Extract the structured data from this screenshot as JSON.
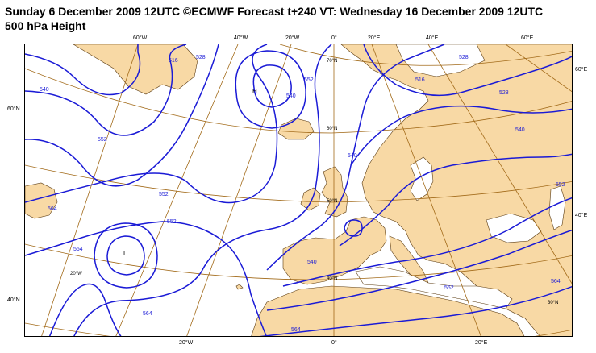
{
  "title": {
    "line1": "Sunday 6 December 2009 12UTC ©ECMWF Forecast t+240 VT: Wednesday 16 December 2009 12UTC",
    "line2": "500 hPa Height"
  },
  "map": {
    "colors": {
      "land": "#f8d9a5",
      "sea": "#ffffff",
      "contour": "#1a1ad6",
      "graticule": "#a26a19",
      "coast": "#5a3a10"
    },
    "top_longitude_labels": [
      "60°W",
      "40°W",
      "20°W",
      "0°",
      "20°E",
      "40°E",
      "60°E"
    ],
    "bottom_longitude_labels": [
      "20°W",
      "0°",
      "20°E"
    ],
    "left_latitude_labels": [
      "60°N",
      "40°N"
    ],
    "right_latitude_labels": [
      "60°E",
      "40°E"
    ],
    "inner_grid_labels": [
      "70°N",
      "60°N",
      "50°N",
      "40°N",
      "30°N",
      "20°W"
    ],
    "contour_labels": [
      "516",
      "528",
      "540",
      "552",
      "564",
      "516",
      "528",
      "540",
      "552",
      "564",
      "552",
      "540",
      "528",
      "540",
      "552",
      "552",
      "564",
      "564",
      "540",
      "552",
      "564"
    ],
    "pressure_centers": [
      {
        "label": "H"
      },
      {
        "label": "L"
      }
    ]
  }
}
